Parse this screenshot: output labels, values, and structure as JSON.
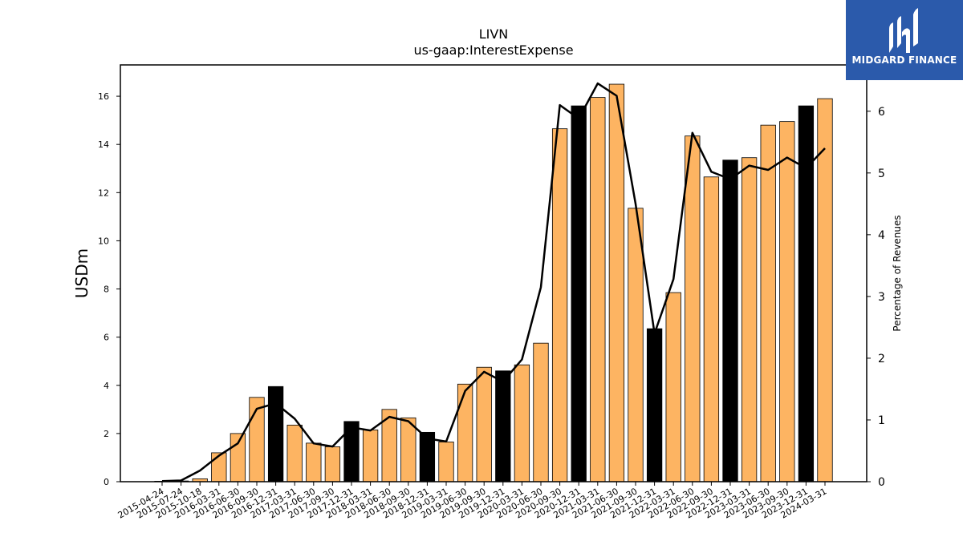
{
  "brand": {
    "name": "MIDGARD FINANCE",
    "bg_color": "#2b5aab",
    "icon": "midgard-logo-icon"
  },
  "chart_data": {
    "type": "bar",
    "title": "LIVN",
    "subtitle": "us-gaap:InterestExpense",
    "ylabel": "USDm",
    "y2label": "Percentage of Revenues",
    "ylim": [
      0,
      17.3
    ],
    "y2lim": [
      0,
      6.75
    ],
    "yticks": [
      0,
      2,
      4,
      6,
      8,
      10,
      12,
      14,
      16
    ],
    "y2ticks": [
      0,
      1,
      2,
      3,
      4,
      5,
      6
    ],
    "grid": false,
    "legend": "none",
    "colors": {
      "quarter_bar": "#fdb462",
      "annual_bar": "#000000",
      "bar_edge": "#000000",
      "line": "#000000"
    },
    "categories": [
      "2015-04-24",
      "2015-07-24",
      "2015-10-18",
      "2016-03-31",
      "2016-06-30",
      "2016-09-30",
      "2016-12-31",
      "2017-03-31",
      "2017-06-30",
      "2017-09-30",
      "2017-12-31",
      "2018-03-31",
      "2018-06-30",
      "2018-09-30",
      "2018-12-31",
      "2019-03-31",
      "2019-06-30",
      "2019-09-30",
      "2019-12-31",
      "2020-03-31",
      "2020-06-30",
      "2020-09-30",
      "2020-12-31",
      "2021-03-31",
      "2021-06-30",
      "2021-09-30",
      "2021-12-31",
      "2022-03-31",
      "2022-06-30",
      "2022-09-30",
      "2022-12-31",
      "2023-03-31",
      "2023-06-30",
      "2023-09-30",
      "2023-12-31",
      "2024-03-31"
    ],
    "series": [
      {
        "kind": "bar",
        "axis": "left",
        "values": [
          0.02,
          0.03,
          0.12,
          1.2,
          2.0,
          3.5,
          3.95,
          2.35,
          1.6,
          1.45,
          2.5,
          2.15,
          3.0,
          2.65,
          2.05,
          1.65,
          4.05,
          4.75,
          4.6,
          4.85,
          5.75,
          14.65,
          15.6,
          15.95,
          16.5,
          11.35,
          6.35,
          7.85,
          14.35,
          12.65,
          13.35,
          13.45,
          14.8,
          14.95,
          15.6,
          15.9
        ],
        "annual": [
          false,
          false,
          false,
          false,
          false,
          false,
          true,
          false,
          false,
          false,
          true,
          false,
          false,
          false,
          true,
          false,
          false,
          false,
          true,
          false,
          false,
          false,
          true,
          false,
          false,
          false,
          true,
          false,
          false,
          false,
          true,
          false,
          false,
          false,
          true,
          false
        ]
      },
      {
        "kind": "line",
        "axis": "right",
        "values": [
          0.01,
          0.02,
          0.18,
          0.42,
          0.62,
          1.18,
          1.27,
          1.02,
          0.62,
          0.57,
          0.88,
          0.83,
          1.05,
          0.98,
          0.7,
          0.65,
          1.47,
          1.78,
          1.62,
          1.98,
          3.15,
          6.1,
          5.88,
          6.45,
          6.25,
          4.5,
          2.4,
          3.28,
          5.65,
          5.02,
          4.9,
          5.12,
          5.05,
          5.25,
          5.08,
          5.4
        ]
      }
    ]
  }
}
